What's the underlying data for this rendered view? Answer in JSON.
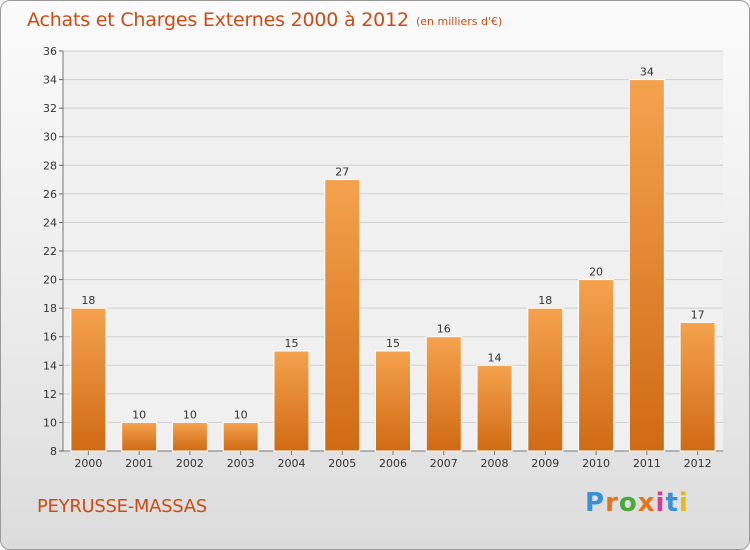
{
  "header": {
    "title": "Achats et Charges Externes 2000 à 2012",
    "subtitle": "(en milliers d'€)"
  },
  "footer": {
    "location": "PEYRUSSE-MASSAS",
    "brand_letters": [
      "P",
      "r",
      "o",
      "x",
      "i",
      "t",
      "i"
    ],
    "brand_colors": [
      "#3a8fd9",
      "#e8731a",
      "#4aa83a",
      "#e8731a",
      "#d83a8f",
      "#3a8fd9",
      "#e8b81a"
    ]
  },
  "colors": {
    "bar_top": "#f5a24e",
    "bar_bottom": "#d06a14",
    "accent_text": "#cc4b14",
    "grid": "#cfcfcf",
    "axis_text": "#333333"
  },
  "chart_data": {
    "type": "bar",
    "categories": [
      "2000",
      "2001",
      "2002",
      "2003",
      "2004",
      "2005",
      "2006",
      "2007",
      "2008",
      "2009",
      "2010",
      "2011",
      "2012"
    ],
    "values": [
      18,
      10,
      10,
      10,
      15,
      27,
      15,
      16,
      14,
      18,
      20,
      34,
      17
    ],
    "ylim": [
      8,
      36
    ],
    "yticks": [
      8,
      10,
      12,
      14,
      16,
      18,
      20,
      22,
      24,
      26,
      28,
      30,
      32,
      34,
      36
    ],
    "grid": true,
    "data_labels": true
  }
}
